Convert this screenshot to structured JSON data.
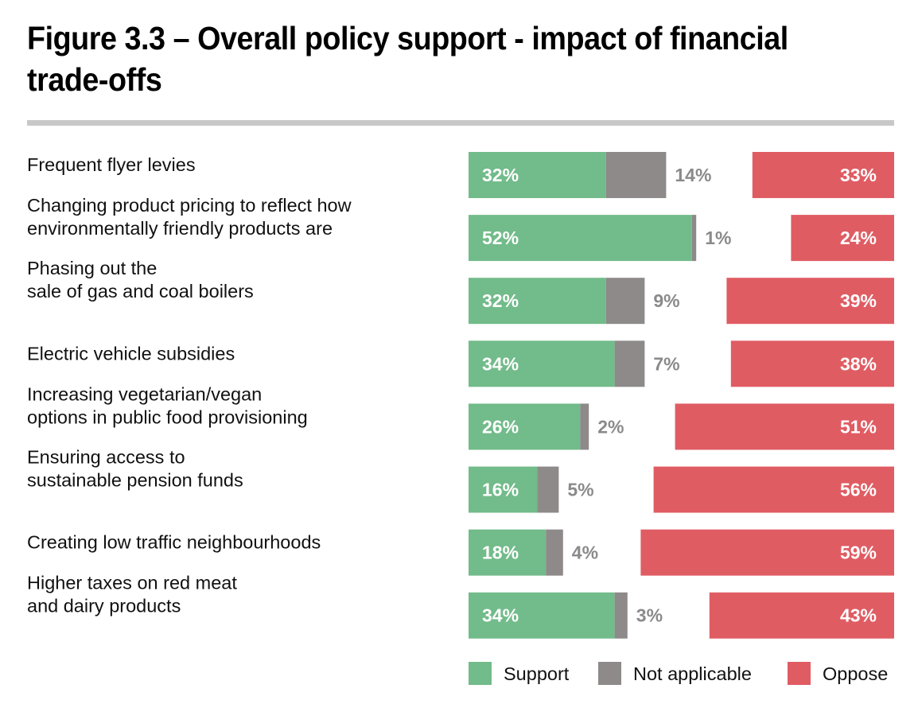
{
  "title": "Figure 3.3 – Overall policy support - impact of financial trade-offs",
  "colors": {
    "support": "#72bb8a",
    "not_applicable": "#8d8a89",
    "oppose": "#e05c63",
    "na_text": "#8a8a8a",
    "rule": "#c8c8c8"
  },
  "chart_data": {
    "type": "bar",
    "orientation": "horizontal",
    "stacked": "diverging",
    "unit": "%",
    "categories": [
      [
        "Frequent flyer levies"
      ],
      [
        "Changing product pricing to reflect how",
        "environmentally friendly products are"
      ],
      [
        "Phasing out the",
        "sale of gas and coal boilers"
      ],
      [
        "Electric vehicle subsidies"
      ],
      [
        "Increasing vegetarian/vegan",
        "options in public food provisioning"
      ],
      [
        "Ensuring access to",
        "sustainable pension funds"
      ],
      [
        "Creating low traffic neighbourhoods"
      ],
      [
        "Higher taxes on red meat",
        "and dairy products"
      ]
    ],
    "series": [
      {
        "name": "Support",
        "color": "#72bb8a",
        "values": [
          32,
          52,
          32,
          34,
          26,
          16,
          18,
          34
        ]
      },
      {
        "name": "Not applicable",
        "color": "#8d8a89",
        "values": [
          14,
          1,
          9,
          7,
          2,
          5,
          4,
          3
        ]
      },
      {
        "name": "Oppose",
        "color": "#e05c63",
        "values": [
          33,
          24,
          39,
          38,
          51,
          56,
          59,
          43
        ]
      }
    ],
    "legend": [
      "Support",
      "Not applicable",
      "Oppose"
    ],
    "legend_position": "bottom-right",
    "grid": false
  }
}
